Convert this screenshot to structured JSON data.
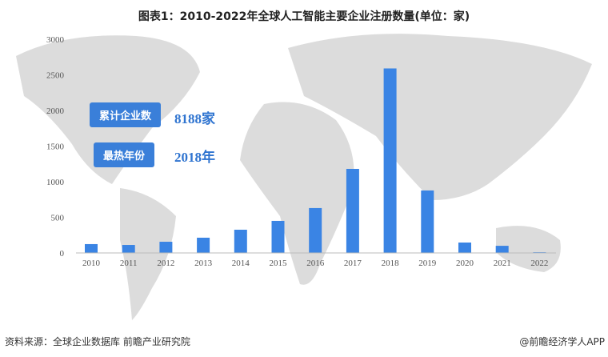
{
  "chart_data": {
    "type": "bar",
    "title": "图表1：2010-2022年全球人工智能主要企业注册数量(单位：家)",
    "categories": [
      "2010",
      "2011",
      "2012",
      "2013",
      "2014",
      "2015",
      "2016",
      "2017",
      "2018",
      "2019",
      "2020",
      "2021",
      "2022"
    ],
    "values": [
      124,
      112,
      157,
      214,
      326,
      450,
      630,
      1180,
      2590,
      877,
      146,
      100,
      10
    ],
    "yticks": [
      "0",
      "500",
      "1000",
      "1500",
      "2000",
      "2500",
      "3000"
    ],
    "ylim": [
      0,
      3000
    ],
    "xlabel": "",
    "ylabel": "",
    "color": "#3a84e4"
  },
  "callouts": [
    {
      "label": "累计企业数",
      "value": "8188家"
    },
    {
      "label": "最热年份",
      "value": "2018年"
    }
  ],
  "footer": {
    "source": "资料来源：全球企业数据库 前瞻产业研究院",
    "brand": "@前瞻经济学人APP"
  }
}
